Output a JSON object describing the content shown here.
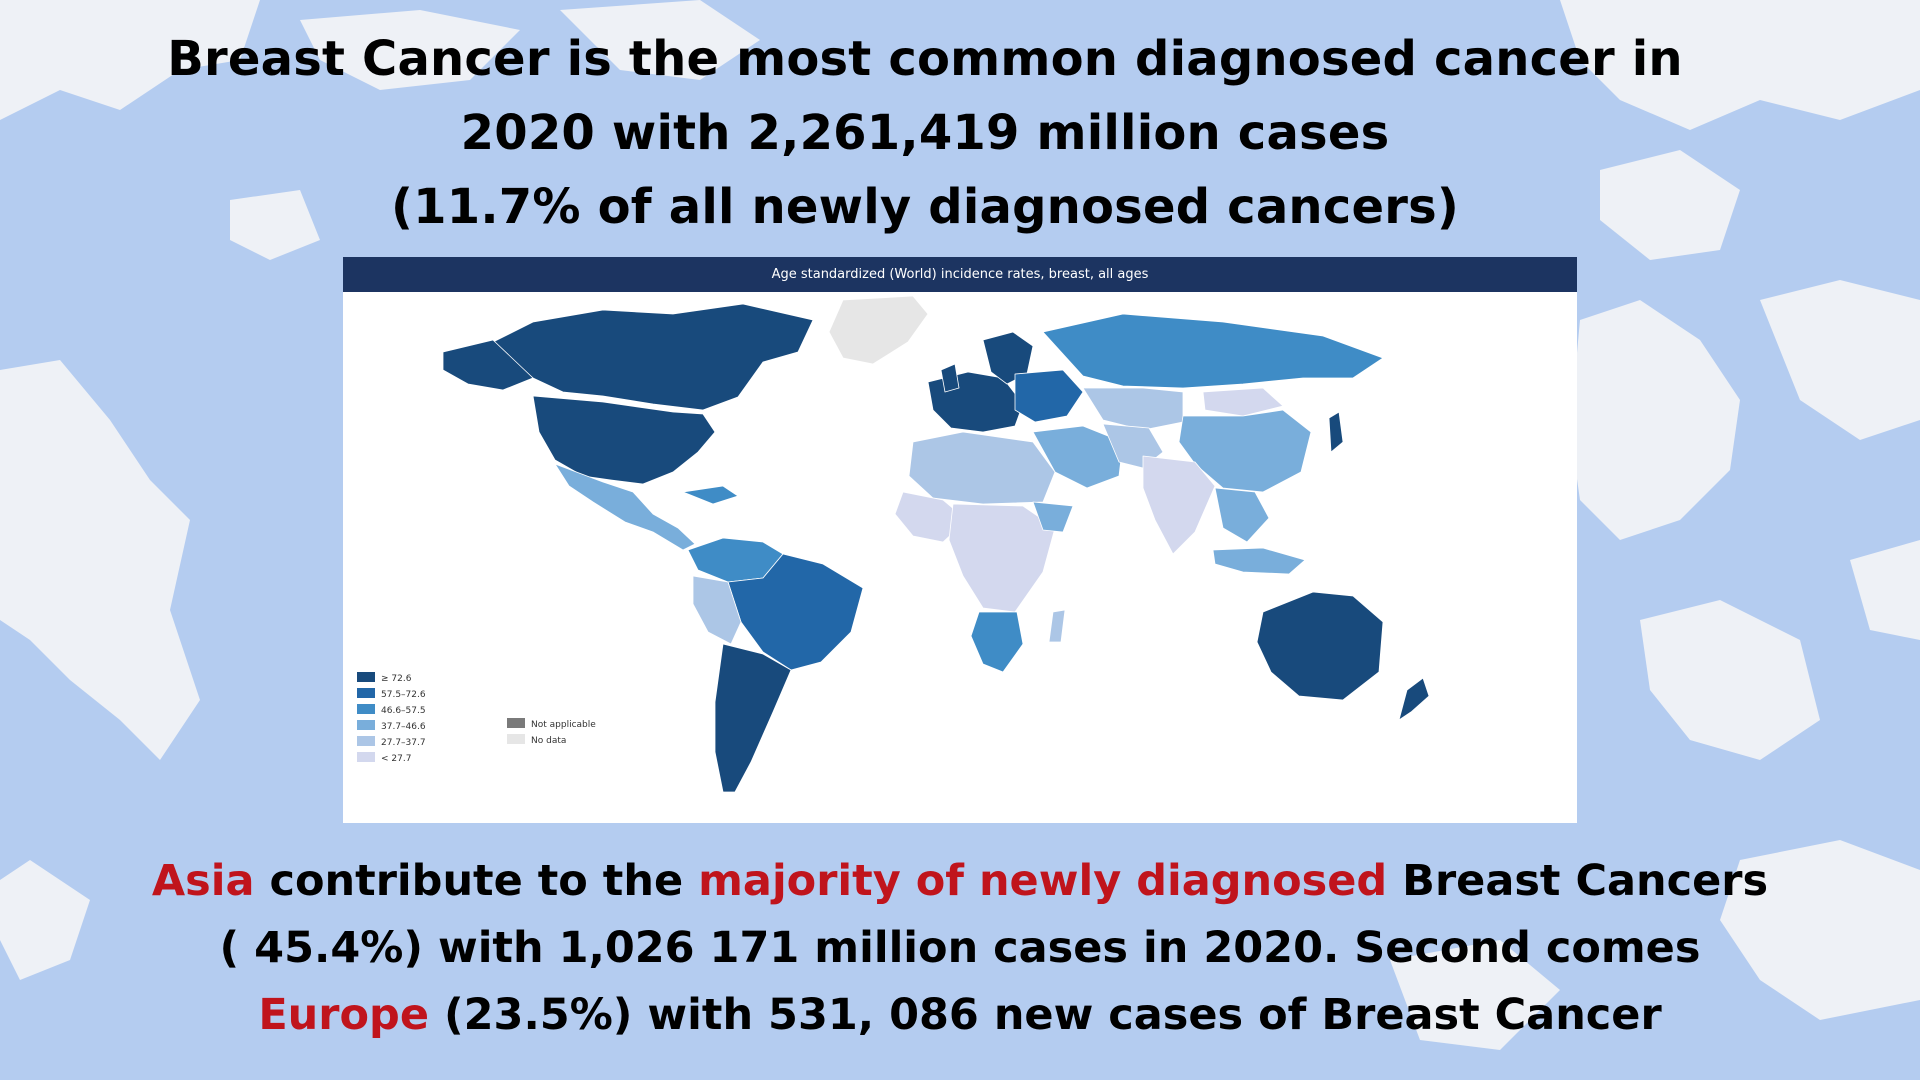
{
  "headline": {
    "line1": "Breast Cancer is the most common diagnosed cancer in",
    "line2": "2020 with 2,261,419 million cases",
    "line3": "(11.7% of all newly diagnosed cancers)"
  },
  "map": {
    "title": "Age standardized (World) incidence rates, breast, all ages",
    "legend": [
      {
        "label": "≥ 72.6",
        "color": "#184a7c"
      },
      {
        "label": "57.5–72.6",
        "color": "#2267a8"
      },
      {
        "label": "46.6–57.5",
        "color": "#3f8cc6"
      },
      {
        "label": "37.7–46.6",
        "color": "#79aedb"
      },
      {
        "label": "27.7–37.7",
        "color": "#acc6e6"
      },
      {
        "label": "< 27.7",
        "color": "#d3d8ee"
      }
    ],
    "legend_extra": [
      {
        "label": "Not applicable",
        "color": "#7a7a7a"
      },
      {
        "label": "No data",
        "color": "#e6e6e6"
      }
    ]
  },
  "summary": {
    "p1_red": "Asia",
    "p2": " contribute to the ",
    "p3_red": "majority of newly diagnosed",
    "p4": " Breast Cancers ( 45.4%) with 1,026 171 million cases in 2020. Second comes ",
    "p5_red": "Europe",
    "p6": " (23.5%) with 531, 086 new cases of Breast Cancer"
  },
  "colors": {
    "background": "#b4ccf0",
    "land_background": "#eef1f6",
    "header_bar": "#1c3461",
    "highlight_red": "#c0141c"
  }
}
